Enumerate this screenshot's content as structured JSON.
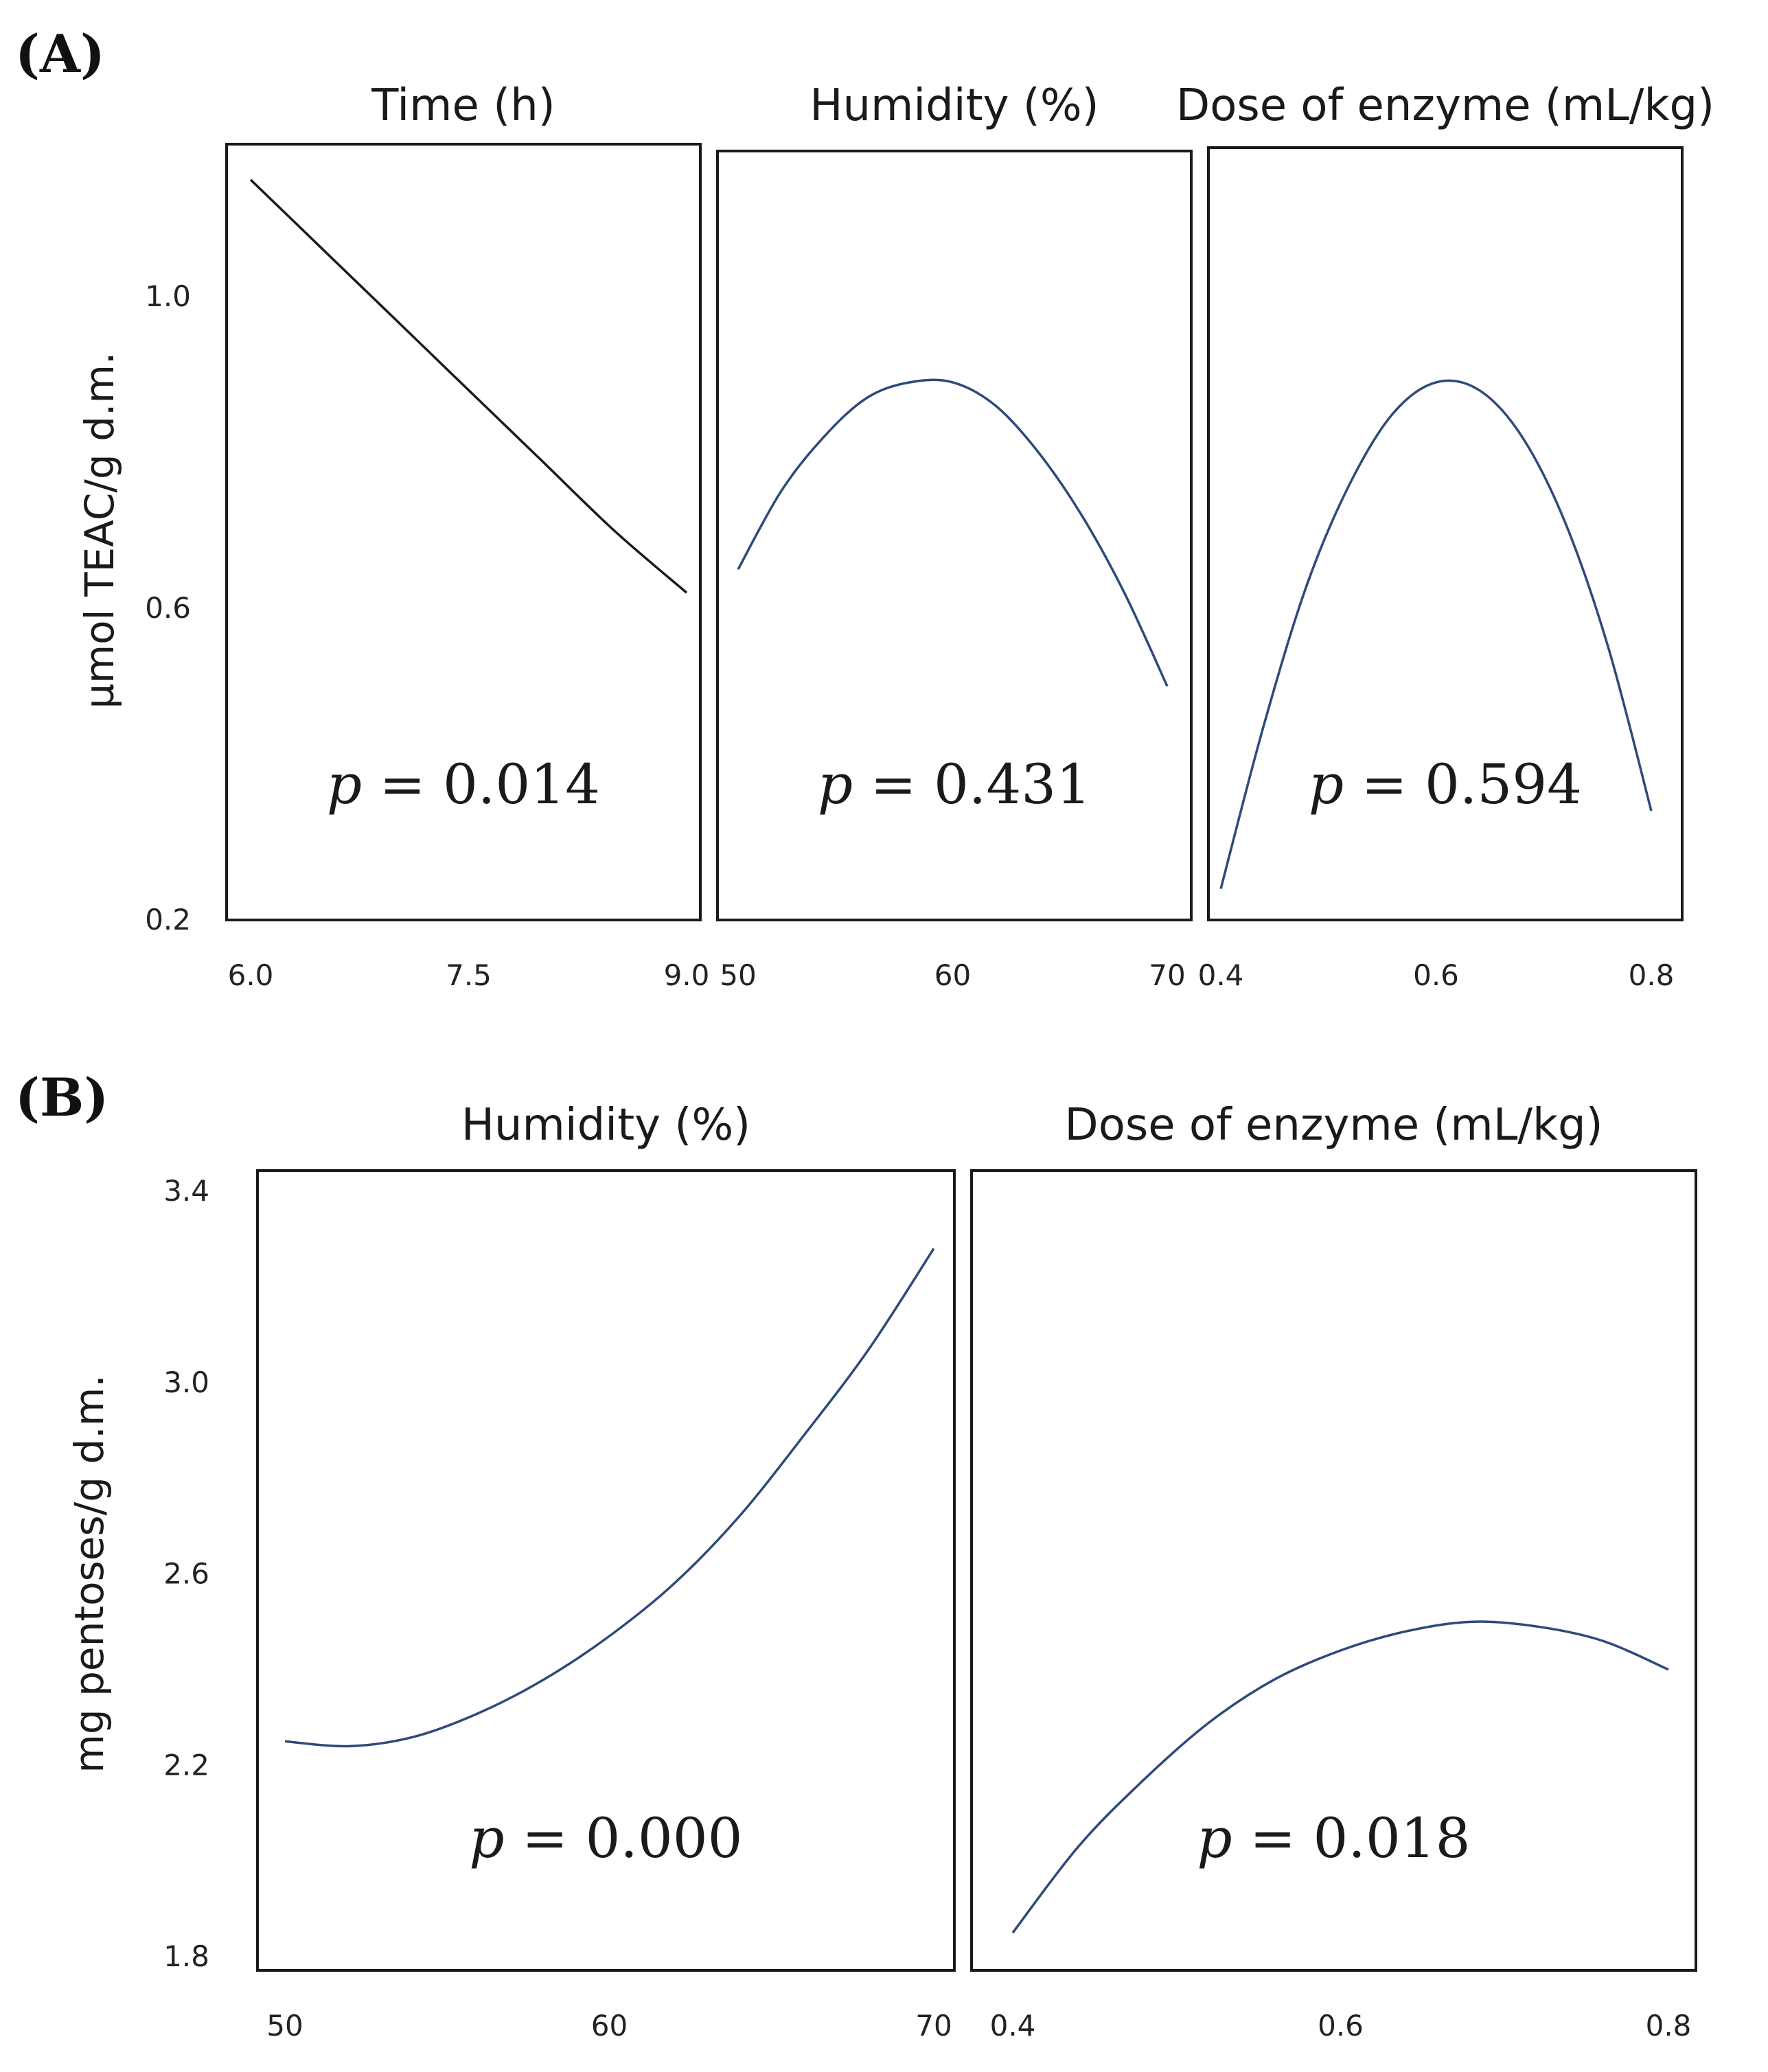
{
  "chart_data": [
    {
      "id": "A",
      "type": "line",
      "label": "(A)",
      "ylabel": "µmol TEAC/g d.m.",
      "ylim": [
        0.2,
        1.2
      ],
      "yticks": [
        "0.2",
        "0.6",
        "1.0"
      ],
      "subplots": [
        {
          "title": "Time (h)",
          "xlim": [
            6.0,
            9.0
          ],
          "xticks": [
            "6.0",
            "7.5",
            "9.0"
          ],
          "color": "#1a1a1a",
          "p_text": "= 0.014",
          "x": [
            6.0,
            6.5,
            7.0,
            7.5,
            8.0,
            8.5,
            9.0
          ],
          "y": [
            1.15,
            1.06,
            0.97,
            0.88,
            0.79,
            0.7,
            0.62
          ]
        },
        {
          "title": "Humidity (%)",
          "xlim": [
            50,
            70
          ],
          "xticks": [
            "50",
            "60",
            "70"
          ],
          "color": "#2e4a7a",
          "p_text": "= 0.431",
          "x": [
            50,
            52,
            54,
            56,
            58,
            60,
            62,
            64,
            66,
            68,
            70
          ],
          "y": [
            0.65,
            0.75,
            0.82,
            0.87,
            0.89,
            0.89,
            0.86,
            0.8,
            0.72,
            0.62,
            0.5
          ]
        },
        {
          "title": "Dose of enzyme (mL/kg)",
          "xlim": [
            0.4,
            0.8
          ],
          "xticks": [
            "0.4",
            "0.6",
            "0.8"
          ],
          "color": "#2e4a7a",
          "p_text": "= 0.594",
          "x": [
            0.4,
            0.44,
            0.48,
            0.52,
            0.56,
            0.6,
            0.64,
            0.68,
            0.72,
            0.76,
            0.8
          ],
          "y": [
            0.24,
            0.45,
            0.63,
            0.76,
            0.85,
            0.89,
            0.88,
            0.82,
            0.71,
            0.55,
            0.34
          ]
        }
      ]
    },
    {
      "id": "B",
      "type": "line",
      "label": "(B)",
      "ylabel": "mg pentoses/g d.m.",
      "ylim": [
        1.8,
        3.4
      ],
      "yticks": [
        "1.8",
        "2.2",
        "2.6",
        "3.0",
        "3.4"
      ],
      "subplots": [
        {
          "title": "Humidity (%)",
          "xlim": [
            50,
            70
          ],
          "xticks": [
            "50",
            "60",
            "70"
          ],
          "color": "#2e4a7a",
          "p_text": "= 0.000",
          "x": [
            50,
            52,
            54,
            56,
            58,
            60,
            62,
            64,
            66,
            68,
            70
          ],
          "y": [
            2.25,
            2.24,
            2.26,
            2.31,
            2.38,
            2.47,
            2.58,
            2.72,
            2.89,
            3.07,
            3.28
          ]
        },
        {
          "title": "Dose of enzyme (mL/kg)",
          "xlim": [
            0.4,
            0.8
          ],
          "xticks": [
            "0.4",
            "0.6",
            "0.8"
          ],
          "color": "#2e4a7a",
          "p_text": "= 0.018",
          "x": [
            0.4,
            0.44,
            0.48,
            0.52,
            0.56,
            0.6,
            0.64,
            0.68,
            0.72,
            0.76,
            0.8
          ],
          "y": [
            1.85,
            2.03,
            2.17,
            2.29,
            2.38,
            2.44,
            2.48,
            2.5,
            2.49,
            2.46,
            2.4
          ]
        }
      ]
    }
  ]
}
